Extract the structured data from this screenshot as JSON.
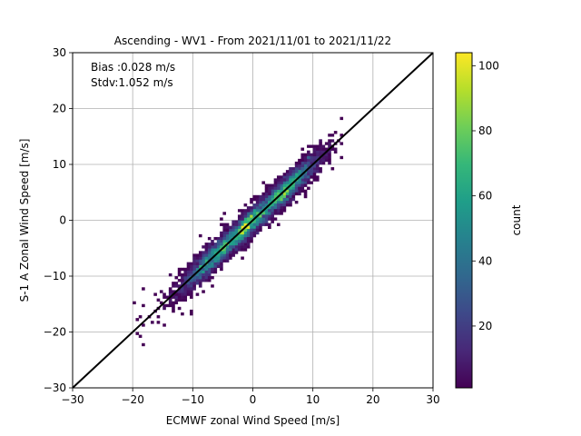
{
  "chart_data": {
    "type": "heatmap",
    "title": "Ascending - WV1 - From 2021/11/01 to 2021/11/22",
    "xlabel": "ECMWF zonal Wind Speed [m/s]",
    "ylabel": "S-1 A Zonal Wind Speed [m/s]",
    "xlim": [
      -30,
      30
    ],
    "ylim": [
      -30,
      30
    ],
    "x_ticks": [
      "−30",
      "−20",
      "−10",
      "0",
      "10",
      "20",
      "30"
    ],
    "y_ticks": [
      "−30",
      "−20",
      "−10",
      "0",
      "10",
      "20",
      "30"
    ],
    "grid": true,
    "annotations": [
      "Bias :0.028 m/s",
      "Stdv:1.052 m/s"
    ],
    "reference_line": {
      "x": [
        -30,
        30
      ],
      "y": [
        -30,
        30
      ],
      "color": "#000000"
    },
    "density": {
      "description_axis": "2D histogram of collocated wind speeds concentrated along the 1:1 line",
      "x_range": [
        -20,
        15
      ],
      "spread_std": 1.05,
      "bin_size": 0.5,
      "peak_count": 100
    },
    "colorbar": {
      "label": "count",
      "range": [
        1,
        104
      ],
      "ticks": [
        "20",
        "40",
        "60",
        "80",
        "100"
      ],
      "colormap": "viridis",
      "colors": [
        "#440154",
        "#482878",
        "#3e4989",
        "#31688e",
        "#26828e",
        "#1f9e89",
        "#35b779",
        "#6ece58",
        "#b5de2b",
        "#fde725"
      ]
    }
  }
}
